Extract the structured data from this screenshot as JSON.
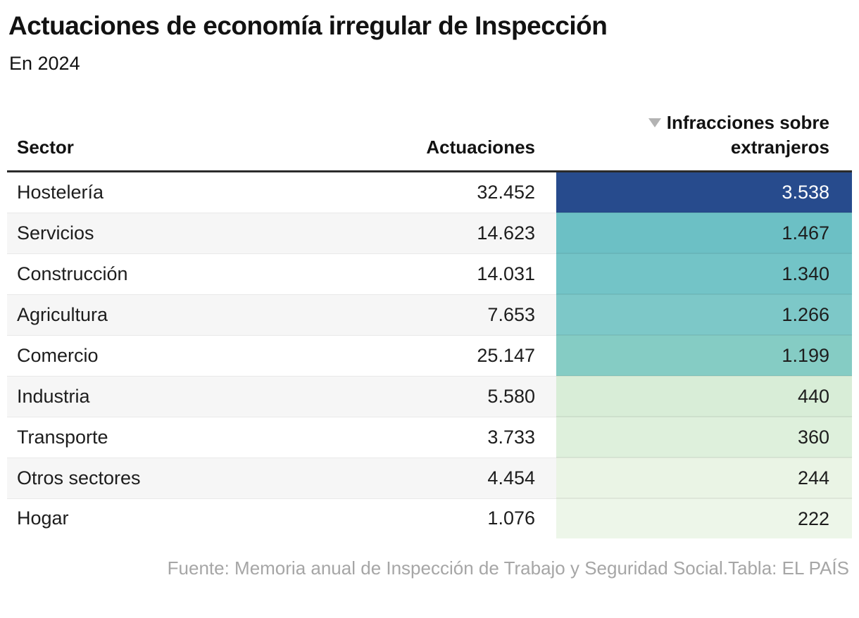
{
  "header": {
    "title": "Actuaciones de economía irregular de Inspección",
    "subtitle": "En 2024"
  },
  "table": {
    "columns": {
      "sector": "Sector",
      "actuaciones": "Actuaciones",
      "infracciones_line1": "Infracciones sobre",
      "infracciones_line2": "extranjeros",
      "sorted_column": "Infracciones sobre extranjeros",
      "sort_direction": "desc"
    },
    "rows": [
      {
        "sector": "Hostelería",
        "actuaciones": "32.452",
        "infracciones": "3.538",
        "bg": "#274b8d",
        "fg": "#ffffff"
      },
      {
        "sector": "Servicios",
        "actuaciones": "14.623",
        "infracciones": "1.467",
        "bg": "#6cc0c5",
        "fg": "#1d1d1d"
      },
      {
        "sector": "Construcción",
        "actuaciones": "14.031",
        "infracciones": "1.340",
        "bg": "#73c4c7",
        "fg": "#1d1d1d"
      },
      {
        "sector": "Agricultura",
        "actuaciones": "7.653",
        "infracciones": "1.266",
        "bg": "#7dc8c8",
        "fg": "#1d1d1d"
      },
      {
        "sector": "Comercio",
        "actuaciones": "25.147",
        "infracciones": "1.199",
        "bg": "#85ccc4",
        "fg": "#1d1d1d"
      },
      {
        "sector": "Industria",
        "actuaciones": "5.580",
        "infracciones": "440",
        "bg": "#d8edd7",
        "fg": "#1d1d1d"
      },
      {
        "sector": "Transporte",
        "actuaciones": "3.733",
        "infracciones": "360",
        "bg": "#def0dc",
        "fg": "#1d1d1d"
      },
      {
        "sector": "Otros sectores",
        "actuaciones": "4.454",
        "infracciones": "244",
        "bg": "#eaf4e5",
        "fg": "#1d1d1d"
      },
      {
        "sector": "Hogar",
        "actuaciones": "1.076",
        "infracciones": "222",
        "bg": "#edf6e9",
        "fg": "#1d1d1d"
      }
    ]
  },
  "footer": {
    "source": "Fuente: Memoria anual de Inspección de Trabajo y Seguridad Social.",
    "credit": "Tabla: EL PAÍS"
  },
  "colors": {
    "header_rule": "#2b2b2b",
    "row_alt_background": "#f6f6f6",
    "row_divider": "#e9e9e9",
    "sort_arrow": "#b3b3b3",
    "footer_text": "#a6a6a6",
    "title_text": "#121212"
  },
  "chart_data": {
    "type": "table",
    "title": "Actuaciones de economía irregular de Inspección",
    "subtitle": "En 2024",
    "categories": [
      "Hostelería",
      "Servicios",
      "Construcción",
      "Agricultura",
      "Comercio",
      "Industria",
      "Transporte",
      "Otros sectores",
      "Hogar"
    ],
    "series": [
      {
        "name": "Actuaciones",
        "values": [
          32452,
          14623,
          14031,
          7653,
          25147,
          5580,
          3733,
          4454,
          1076
        ]
      },
      {
        "name": "Infracciones sobre extranjeros",
        "values": [
          3538,
          1467,
          1340,
          1266,
          1199,
          440,
          360,
          244,
          222
        ]
      }
    ],
    "sorted_by": "Infracciones sobre extranjeros",
    "sort_direction": "descending",
    "heatmap_column": "Infracciones sobre extranjeros",
    "heatmap_scale": [
      "#edf6e9",
      "#6cc0c5",
      "#274b8d"
    ],
    "source": "Fuente: Memoria anual de Inspección de Trabajo y Seguridad Social.",
    "credit": "Tabla: EL PAÍS"
  }
}
